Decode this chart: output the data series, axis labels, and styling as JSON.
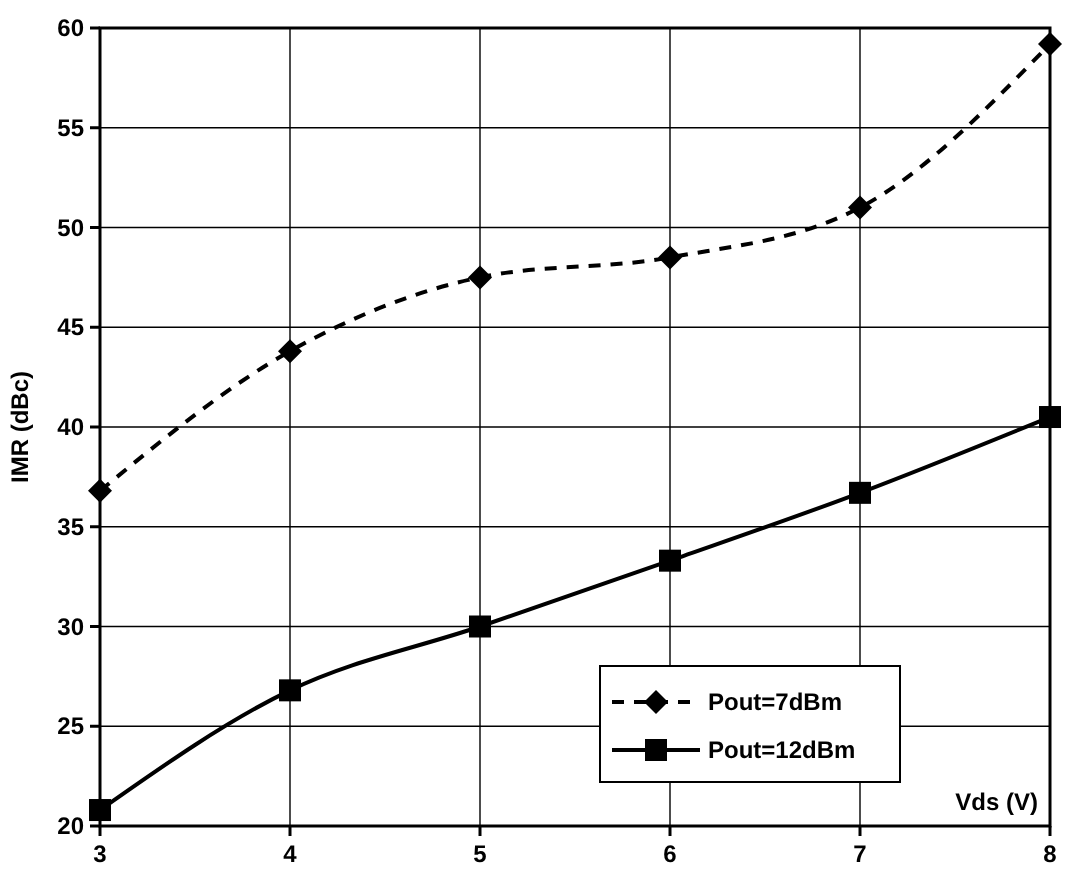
{
  "chart_data": {
    "type": "line",
    "xlabel": "Vds (V)",
    "ylabel": "IMR (dBc)",
    "x": [
      3,
      4,
      5,
      6,
      7,
      8
    ],
    "series": [
      {
        "name": "Pout=7dBm",
        "color": "#000000",
        "values": [
          36.8,
          43.8,
          47.5,
          48.5,
          51,
          59.2
        ],
        "marker": "diamond",
        "line_style": "dashed"
      },
      {
        "name": "Pout=12dBm",
        "color": "#000000",
        "values": [
          20.8,
          26.8,
          30,
          33.3,
          36.7,
          40.5
        ],
        "marker": "square",
        "line_style": "solid"
      }
    ],
    "xlim": [
      3,
      8
    ],
    "xticks": [
      3,
      4,
      5,
      6,
      7,
      8
    ],
    "ylim": [
      20,
      60
    ],
    "yticks": [
      20,
      25,
      30,
      35,
      40,
      45,
      50,
      55,
      60
    ],
    "grid": true,
    "legend": "bottom right"
  }
}
